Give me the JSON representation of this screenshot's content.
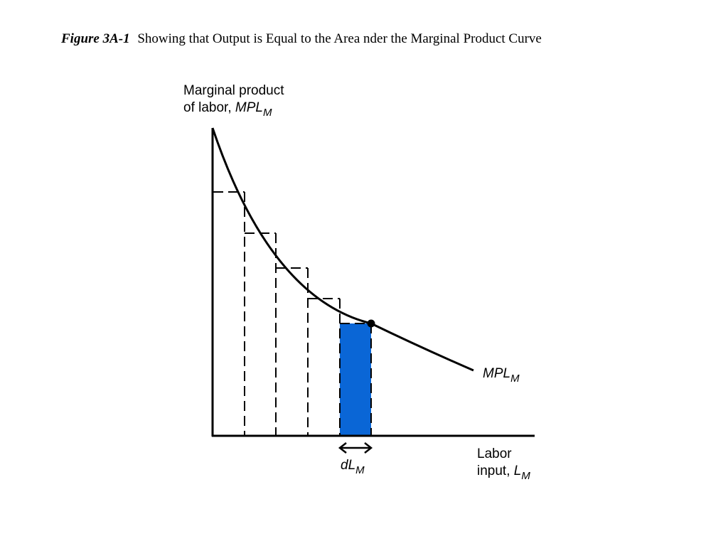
{
  "figure": {
    "number": "Figure 3A-1",
    "title": "Showing that Output is Equal to the Area nder the Marginal Product Curve"
  },
  "diagram": {
    "y_axis_label_line1": "Marginal product",
    "y_axis_label_line2_prefix": "of labor, ",
    "y_axis_label_var": "MPL",
    "y_axis_label_sub": "M",
    "x_axis_label_line1": "Labor",
    "x_axis_label_line2_prefix": "input, ",
    "x_axis_label_var": "L",
    "x_axis_label_sub": "M",
    "curve_label_var": "MPL",
    "curve_label_sub": "M",
    "interval_label_var": "dL",
    "interval_label_sub": "M",
    "colors": {
      "highlight_bar": "#0a66d6",
      "lines": "#000000"
    }
  }
}
